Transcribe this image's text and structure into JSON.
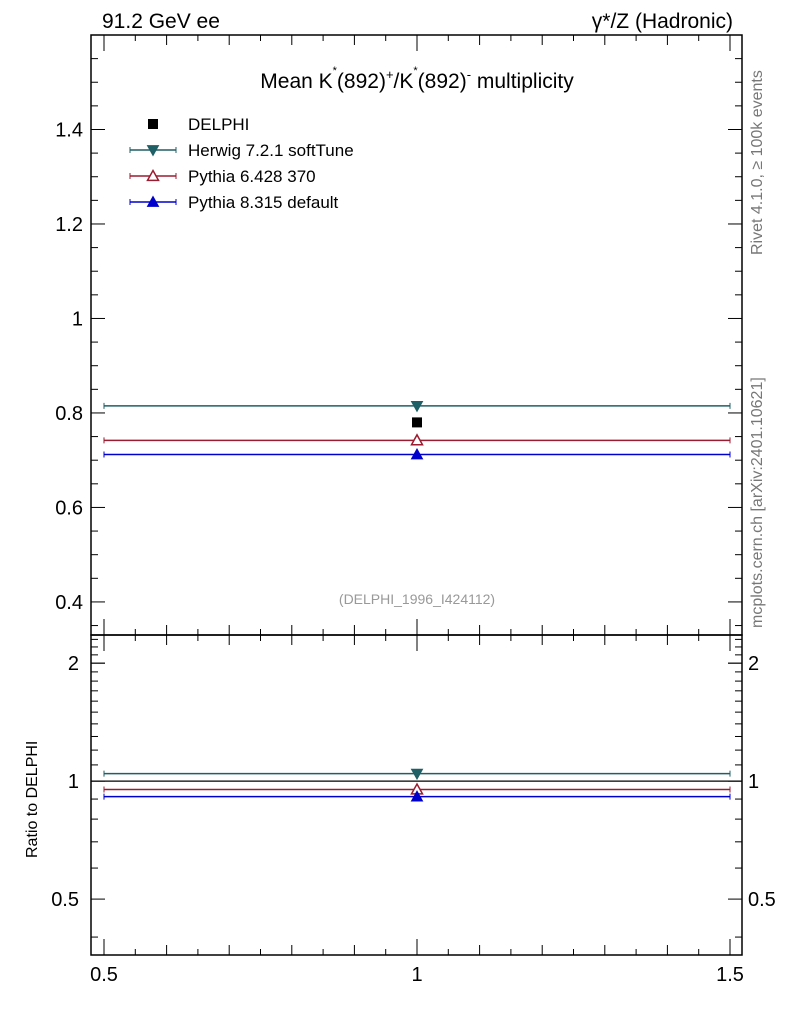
{
  "header": {
    "left": "91.2 GeV ee",
    "right": "γ*/Z (Hadronic)"
  },
  "side_labels": {
    "rivet": "Rivet 4.1.0, ≥ 100k events",
    "mcplots": "mcplots.cern.ch [arXiv:2401.10621]"
  },
  "chart_data": [
    {
      "type": "scatter",
      "title": "Mean K*(892)+/K*(892)- multiplicity",
      "title_parts": {
        "pre": "Mean K",
        "star1": "*",
        "mid1": "(892)",
        "sup_plus": "+",
        "slash": "/K",
        "star2": "*",
        "mid2": "(892)",
        "sup_minus": "-",
        "post": " multiplicity"
      },
      "watermark": "(DELPHI_1996_I424112)",
      "xlim": [
        0.5,
        1.5
      ],
      "ylim": [
        0.33,
        1.6
      ],
      "yticks": [
        "0.4",
        "0.6",
        "0.8",
        "1",
        "1.2",
        "1.4"
      ],
      "ytick_values": [
        0.4,
        0.6,
        0.8,
        1.0,
        1.2,
        1.4
      ],
      "legend_position": "top-left",
      "series": [
        {
          "name": "DELPHI",
          "x": 1.0,
          "y": 0.78,
          "color": "#000000",
          "marker": "square-filled"
        },
        {
          "name": "Herwig 7.2.1 softTune",
          "x": 1.0,
          "y": 0.815,
          "xerr": [
            0.5,
            1.5
          ],
          "color": "#1f5f66",
          "marker": "triangle-down-filled"
        },
        {
          "name": "Pythia 6.428 370",
          "x": 1.0,
          "y": 0.742,
          "xerr": [
            0.5,
            1.5
          ],
          "color": "#9b1b30",
          "marker": "triangle-up-open"
        },
        {
          "name": "Pythia 8.315 default",
          "x": 1.0,
          "y": 0.712,
          "xerr": [
            0.5,
            1.5
          ],
          "color": "#0000cc",
          "marker": "triangle-up-filled"
        }
      ]
    },
    {
      "type": "scatter",
      "ylabel": "Ratio to DELPHI",
      "xlim": [
        0.5,
        1.5
      ],
      "ylim": [
        0.36,
        2.36
      ],
      "xticks": [
        "0.5",
        "1",
        "1.5"
      ],
      "xtick_values": [
        0.5,
        1.0,
        1.5
      ],
      "yticks": [
        "0.5",
        "1",
        "2"
      ],
      "ytick_values": [
        0.5,
        1.0,
        2.0
      ],
      "reference_line": 1.0,
      "series": [
        {
          "name": "Herwig 7.2.1 softTune",
          "x": 1.0,
          "y": 1.045,
          "color": "#1f5f66",
          "marker": "triangle-down-filled"
        },
        {
          "name": "Pythia 6.428 370",
          "x": 1.0,
          "y": 0.952,
          "color": "#9b1b30",
          "marker": "triangle-up-open"
        },
        {
          "name": "Pythia 8.315 default",
          "x": 1.0,
          "y": 0.913,
          "color": "#0000cc",
          "marker": "triangle-up-filled"
        }
      ]
    }
  ]
}
